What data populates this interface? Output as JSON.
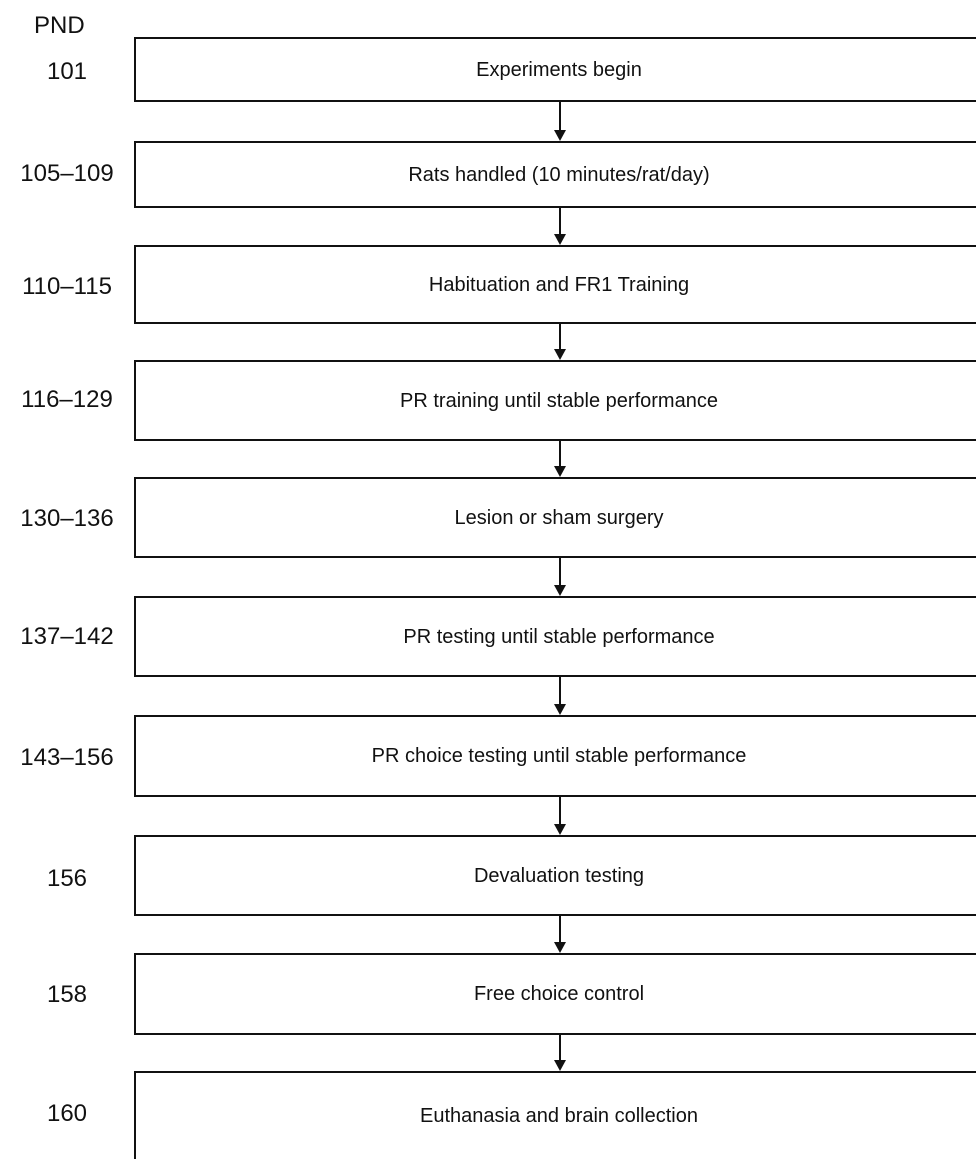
{
  "header": "PND",
  "steps": [
    {
      "pnd": "101",
      "label": "Experiments begin"
    },
    {
      "pnd": "105–109",
      "label": "Rats handled (10 minutes/rat/day)"
    },
    {
      "pnd": "110–115",
      "label": "Habituation and FR1 Training"
    },
    {
      "pnd": "116–129",
      "label": "PR training until stable performance"
    },
    {
      "pnd": "130–136",
      "label": "Lesion or sham surgery"
    },
    {
      "pnd": "137–142",
      "label": "PR testing until stable performance"
    },
    {
      "pnd": "143–156",
      "label": "PR choice testing until stable performance"
    },
    {
      "pnd": "156",
      "label": "Devaluation testing"
    },
    {
      "pnd": "158",
      "label": "Free choice control"
    },
    {
      "pnd": "160",
      "label": "Euthanasia and brain collection"
    }
  ]
}
